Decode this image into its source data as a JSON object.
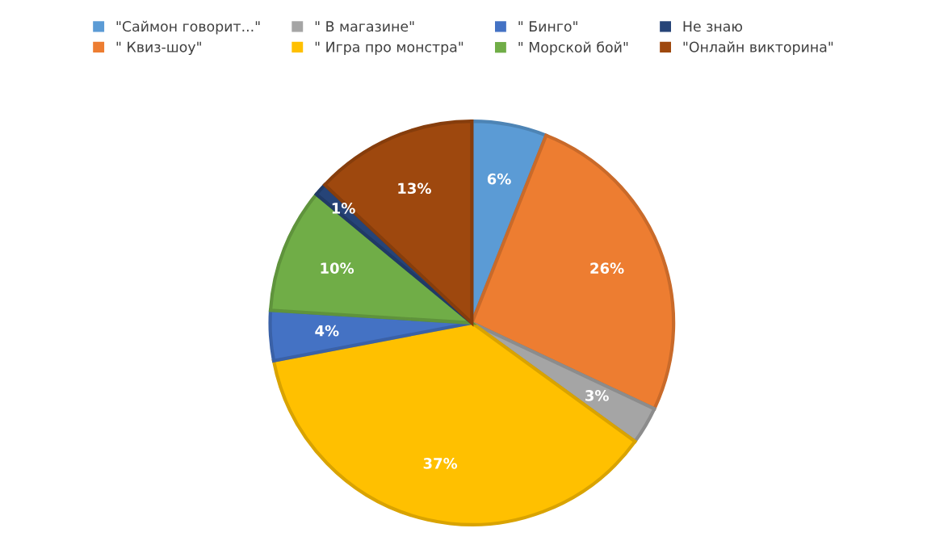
{
  "chart_data": {
    "type": "pie",
    "categories": [
      "\"Саймон говорит...\"",
      "\" Квиз-шоу\"",
      "\" В магазине\"",
      "\" Игра про монстра\"",
      "\" Бинго\"",
      "\" Морской бой\"",
      "Не знаю",
      "\"Онлайн викторина\""
    ],
    "values": [
      6,
      26,
      3,
      37,
      4,
      10,
      1,
      13
    ],
    "colors": [
      "#5b9bd5",
      "#ed7d31",
      "#a5a5a5",
      "#ffc000",
      "#4472c4",
      "#70ad47",
      "#264478",
      "#9e480e"
    ],
    "value_labels": [
      "6%",
      "26%",
      "3%",
      "37%",
      "4%",
      "10%",
      "1%",
      "13%"
    ],
    "legend": "top"
  }
}
